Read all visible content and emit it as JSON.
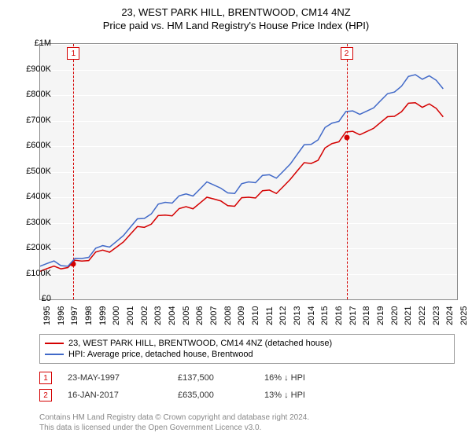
{
  "title": "23, WEST PARK HILL, BRENTWOOD, CM14 4NZ",
  "subtitle": "Price paid vs. HM Land Registry's House Price Index (HPI)",
  "chart": {
    "type": "line",
    "background_color": "#f5f5f5",
    "grid_color": "#ffffff",
    "border_color": "#888888",
    "x_years": [
      1995,
      1996,
      1997,
      1998,
      1999,
      2000,
      2001,
      2002,
      2003,
      2004,
      2005,
      2006,
      2007,
      2008,
      2009,
      2010,
      2011,
      2012,
      2013,
      2014,
      2015,
      2016,
      2017,
      2018,
      2019,
      2020,
      2021,
      2022,
      2023,
      2024,
      2025
    ],
    "ylim": [
      0,
      1000000
    ],
    "ytick_step": 100000,
    "y_labels": [
      "£0",
      "£100K",
      "£200K",
      "£300K",
      "£400K",
      "£500K",
      "£600K",
      "£700K",
      "£800K",
      "£900K",
      "£1M"
    ],
    "label_fontsize": 11,
    "series": [
      {
        "name": "price_paid",
        "color": "#d40000",
        "line_width": 1.5,
        "points": [
          [
            1995,
            110000
          ],
          [
            1996,
            115000
          ],
          [
            1997,
            140000
          ],
          [
            1998,
            150000
          ],
          [
            1999,
            170000
          ],
          [
            2000,
            200000
          ],
          [
            2001,
            225000
          ],
          [
            2002,
            270000
          ],
          [
            2003,
            310000
          ],
          [
            2004,
            330000
          ],
          [
            2005,
            340000
          ],
          [
            2006,
            370000
          ],
          [
            2007,
            400000
          ],
          [
            2008,
            370000
          ],
          [
            2009,
            380000
          ],
          [
            2010,
            400000
          ],
          [
            2011,
            410000
          ],
          [
            2012,
            430000
          ],
          [
            2013,
            470000
          ],
          [
            2014,
            520000
          ],
          [
            2015,
            560000
          ],
          [
            2016,
            610000
          ],
          [
            2017,
            640000
          ],
          [
            2018,
            660000
          ],
          [
            2019,
            670000
          ],
          [
            2020,
            700000
          ],
          [
            2021,
            750000
          ],
          [
            2022,
            770000
          ],
          [
            2023,
            750000
          ],
          [
            2024,
            730000
          ]
        ]
      },
      {
        "name": "hpi",
        "color": "#4169c8",
        "line_width": 1.5,
        "points": [
          [
            1995,
            130000
          ],
          [
            1996,
            135000
          ],
          [
            1997,
            145000
          ],
          [
            1998,
            160000
          ],
          [
            1999,
            185000
          ],
          [
            2000,
            220000
          ],
          [
            2001,
            250000
          ],
          [
            2002,
            300000
          ],
          [
            2003,
            350000
          ],
          [
            2004,
            380000
          ],
          [
            2005,
            390000
          ],
          [
            2006,
            420000
          ],
          [
            2007,
            460000
          ],
          [
            2008,
            420000
          ],
          [
            2009,
            430000
          ],
          [
            2010,
            460000
          ],
          [
            2011,
            470000
          ],
          [
            2012,
            490000
          ],
          [
            2013,
            530000
          ],
          [
            2014,
            590000
          ],
          [
            2015,
            640000
          ],
          [
            2016,
            690000
          ],
          [
            2017,
            720000
          ],
          [
            2018,
            740000
          ],
          [
            2019,
            750000
          ],
          [
            2020,
            790000
          ],
          [
            2021,
            850000
          ],
          [
            2022,
            880000
          ],
          [
            2023,
            860000
          ],
          [
            2024,
            840000
          ]
        ]
      }
    ],
    "events": [
      {
        "num": "1",
        "year": 1997.4,
        "price": 137500,
        "color": "#d40000"
      },
      {
        "num": "2",
        "year": 2017.05,
        "price": 635000,
        "color": "#d40000"
      }
    ]
  },
  "legend": {
    "items": [
      {
        "color": "#d40000",
        "label": "23, WEST PARK HILL, BRENTWOOD, CM14 4NZ (detached house)"
      },
      {
        "color": "#4169c8",
        "label": "HPI: Average price, detached house, Brentwood"
      }
    ]
  },
  "transactions": [
    {
      "num": "1",
      "color": "#d40000",
      "date": "23-MAY-1997",
      "price": "£137,500",
      "pct": "16% ↓ HPI"
    },
    {
      "num": "2",
      "color": "#d40000",
      "date": "16-JAN-2017",
      "price": "£635,000",
      "pct": "13% ↓ HPI"
    }
  ],
  "footer": {
    "line1": "Contains HM Land Registry data © Crown copyright and database right 2024.",
    "line2": "This data is licensed under the Open Government Licence v3.0."
  }
}
